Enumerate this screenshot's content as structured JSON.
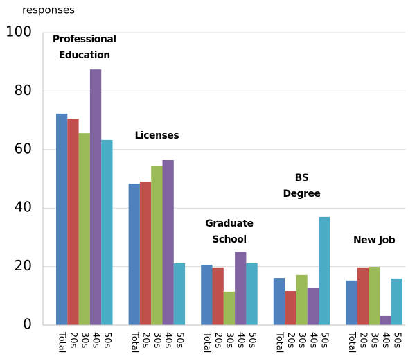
{
  "chart_data": {
    "type": "bar",
    "y_label": "responses",
    "categories": [
      [
        "Professional",
        "Education"
      ],
      [
        "Licenses"
      ],
      [
        "Graduate",
        "School"
      ],
      [
        "BS",
        "Degree"
      ],
      [
        "New Job"
      ]
    ],
    "series": [
      {
        "name": "Total",
        "color": "#4f81bd",
        "values": [
          72.3,
          48.3,
          20.6,
          16.1,
          15.2
        ]
      },
      {
        "name": "20s",
        "color": "#c0504d",
        "values": [
          70.6,
          49,
          19.7,
          11.6,
          19.7
        ]
      },
      {
        "name": "30s",
        "color": "#9bbb59",
        "values": [
          65.6,
          54.3,
          11.4,
          17.1,
          19.9
        ]
      },
      {
        "name": "40s",
        "color": "#8064a2",
        "values": [
          87.4,
          56.4,
          25.1,
          12.6,
          3.1
        ]
      },
      {
        "name": "50s",
        "color": "#4bacc6",
        "values": [
          63.3,
          21.1,
          21.1,
          37,
          15.9
        ]
      }
    ],
    "ylim": [
      0,
      100
    ],
    "yticks": [
      0,
      20,
      40,
      60,
      80,
      100
    ],
    "grid": true
  }
}
